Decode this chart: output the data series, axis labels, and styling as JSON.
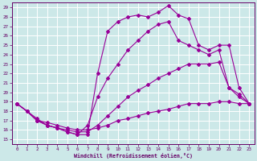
{
  "background_color": "#cce8e8",
  "line_color": "#990099",
  "grid_color": "#aacccc",
  "xlabel": "Windchill (Refroidissement éolien,°C)",
  "xlim": [
    -0.5,
    23.5
  ],
  "ylim": [
    14.5,
    29.5
  ],
  "xticks": [
    0,
    1,
    2,
    3,
    4,
    5,
    6,
    7,
    8,
    9,
    10,
    11,
    12,
    13,
    14,
    15,
    16,
    17,
    18,
    19,
    20,
    21,
    22,
    23
  ],
  "yticks": [
    15,
    16,
    17,
    18,
    19,
    20,
    21,
    22,
    23,
    24,
    25,
    26,
    27,
    28,
    29
  ],
  "lines": [
    {
      "x": [
        0,
        1,
        2,
        3,
        4,
        5,
        6,
        7,
        8,
        9,
        10,
        11,
        12,
        13,
        14,
        15,
        16,
        17,
        18,
        19,
        20,
        21,
        22,
        23
      ],
      "y": [
        18.8,
        18.0,
        17.0,
        16.8,
        16.5,
        16.2,
        16.0,
        16.0,
        16.2,
        16.5,
        17.0,
        17.2,
        17.5,
        17.8,
        18.0,
        18.2,
        18.5,
        18.8,
        18.8,
        18.8,
        19.0,
        19.0,
        18.8,
        18.8
      ]
    },
    {
      "x": [
        0,
        1,
        2,
        3,
        4,
        5,
        6,
        7,
        8,
        9,
        10,
        11,
        12,
        13,
        14,
        15,
        16,
        17,
        18,
        19,
        20,
        21,
        22,
        23
      ],
      "y": [
        18.8,
        18.0,
        17.2,
        16.5,
        16.2,
        16.0,
        15.8,
        15.8,
        16.5,
        17.5,
        18.5,
        19.5,
        20.2,
        20.8,
        21.5,
        22.0,
        22.5,
        23.0,
        23.0,
        23.0,
        23.2,
        20.5,
        19.5,
        18.8
      ]
    },
    {
      "x": [
        0,
        1,
        2,
        3,
        4,
        5,
        6,
        7,
        8,
        9,
        10,
        11,
        12,
        13,
        14,
        15,
        16,
        17,
        18,
        19,
        20,
        21,
        22,
        23
      ],
      "y": [
        18.8,
        18.0,
        17.0,
        16.5,
        16.2,
        15.8,
        15.5,
        16.5,
        19.5,
        21.5,
        23.0,
        24.5,
        25.5,
        26.5,
        27.2,
        27.5,
        25.5,
        25.0,
        24.5,
        24.0,
        24.5,
        20.5,
        19.8,
        18.8
      ]
    },
    {
      "x": [
        0,
        1,
        2,
        3,
        4,
        5,
        6,
        7,
        8,
        9,
        10,
        11,
        12,
        13,
        14,
        15,
        16,
        17,
        18,
        19,
        20,
        21,
        22,
        23
      ],
      "y": [
        18.8,
        18.0,
        17.0,
        16.5,
        16.2,
        15.8,
        15.5,
        15.5,
        22.0,
        26.5,
        27.5,
        28.0,
        28.2,
        28.0,
        28.5,
        29.2,
        28.2,
        27.8,
        25.0,
        24.5,
        25.0,
        25.0,
        20.5,
        18.8
      ]
    }
  ]
}
